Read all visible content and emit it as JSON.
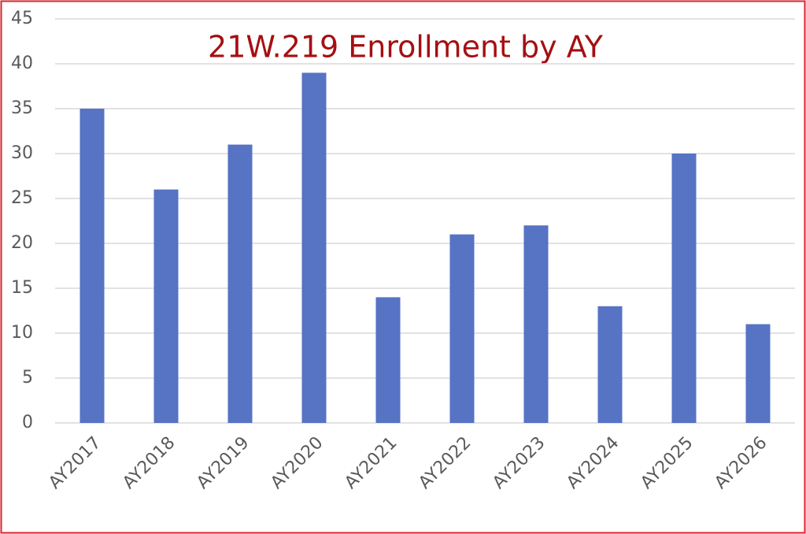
{
  "chart_data": {
    "type": "bar",
    "title": "21W.219 Enrollment by AY",
    "categories": [
      "AY2017",
      "AY2018",
      "AY2019",
      "AY2020",
      "AY2021",
      "AY2022",
      "AY2023",
      "AY2024",
      "AY2025",
      "AY2026"
    ],
    "values": [
      35,
      26,
      31,
      39,
      14,
      21,
      22,
      13,
      30,
      11
    ],
    "color": "#5673c4",
    "ylim": [
      0,
      45
    ],
    "yticks": [
      0,
      5,
      10,
      15,
      20,
      25,
      30,
      35,
      40,
      45
    ],
    "grid": true
  }
}
